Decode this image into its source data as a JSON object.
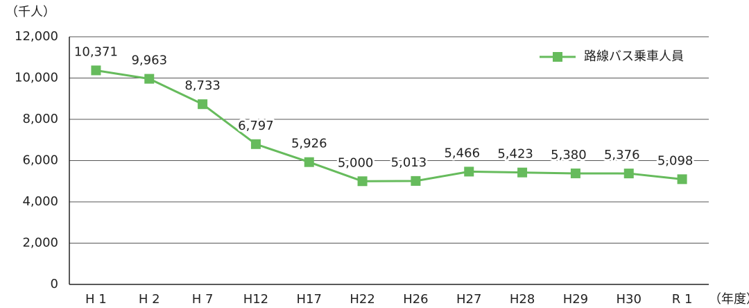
{
  "chart_data": {
    "type": "line",
    "y_unit_label": "（千人）",
    "x_axis_label": "（年度）",
    "categories": [
      "H 1",
      "H 2",
      "H 7",
      "H12",
      "H17",
      "H22",
      "H26",
      "H27",
      "H28",
      "H29",
      "H30",
      "R 1"
    ],
    "series": [
      {
        "name": "路線バス乗車人員",
        "color": "#66bb5c",
        "values": [
          10371,
          9963,
          8733,
          6797,
          5926,
          5000,
          5013,
          5466,
          5423,
          5380,
          5376,
          5098
        ],
        "value_labels": [
          "10,371",
          "9,963",
          "8,733",
          "6,797",
          "5,926",
          "5,000",
          "5,013",
          "5,466",
          "5,423",
          "5,380",
          "5,376",
          "5,098"
        ]
      }
    ],
    "ylim": [
      0,
      12000
    ],
    "yticks": [
      0,
      {
        "value": 2000,
        "label": "2,000"
      },
      {
        "value": 4000,
        "label": "4,000"
      },
      {
        "value": 6000,
        "label": "6,000"
      },
      {
        "value": 8000,
        "label": "8,000"
      },
      {
        "value": 10000,
        "label": "10,000"
      },
      {
        "value": 12000,
        "label": "12,000"
      }
    ],
    "grid": true,
    "legend": "top-right"
  }
}
